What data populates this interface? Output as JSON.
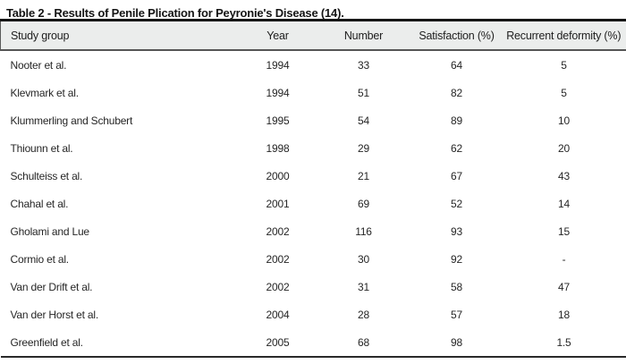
{
  "table": {
    "title": "Table 2 - Results of Penile Plication for Peyronie's Disease (14).",
    "columns": [
      "Study group",
      "Year",
      "Number",
      "Satisfaction (%)",
      "Recurrent deformity (%)"
    ],
    "rows": [
      [
        "Nooter et al.",
        "1994",
        "33",
        "64",
        "5"
      ],
      [
        "Klevmark et al.",
        "1994",
        "51",
        "82",
        "5"
      ],
      [
        "Klummerling and Schubert",
        "1995",
        "54",
        "89",
        "10"
      ],
      [
        "Thiounn et al.",
        "1998",
        "29",
        "62",
        "20"
      ],
      [
        "Schulteiss et al.",
        "2000",
        "21",
        "67",
        "43"
      ],
      [
        "Chahal et al.",
        "2001",
        "69",
        "52",
        "14"
      ],
      [
        "Gholami and Lue",
        "2002",
        "116",
        "93",
        "15"
      ],
      [
        "Cormio et al.",
        "2002",
        "30",
        "92",
        "-"
      ],
      [
        "Van der Drift et al.",
        "2002",
        "31",
        "58",
        "47"
      ],
      [
        "Van der Horst et al.",
        "2004",
        "28",
        "57",
        "18"
      ],
      [
        "Greenfield et al.",
        "2005",
        "68",
        "98",
        "1.5"
      ]
    ],
    "colors": {
      "header_background": "#ebedec",
      "rule_top": "#161616",
      "rule_under_header": "#555555",
      "rule_bottom": "#2a2a2a",
      "text": "#262626"
    }
  }
}
